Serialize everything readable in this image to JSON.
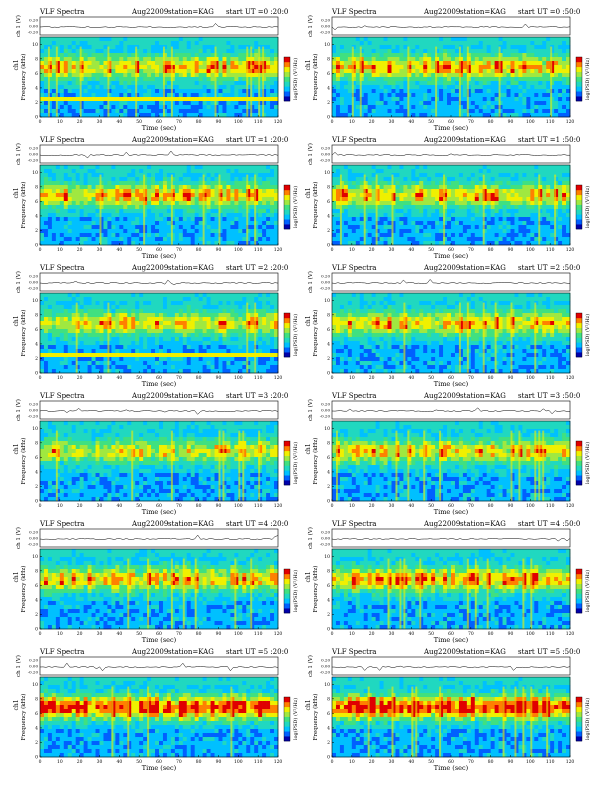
{
  "panels": [
    {
      "title_left": "VLF Spectra",
      "title_date": "Aug22009",
      "title_station": "station=KAG",
      "title_start": "start UT =0 :20:0",
      "x_ticks": [
        "0",
        "10",
        "20",
        "30",
        "40",
        "50",
        "60",
        "70",
        "80",
        "90",
        "100",
        "110",
        "120"
      ],
      "seed": 11,
      "intensity": 0.55,
      "hband": true
    },
    {
      "title_left": "VLF Spectra",
      "title_date": "Aug22009",
      "title_station": "station=KAG",
      "title_start": "start UT =0 :50:0",
      "x_ticks": [
        "0",
        "10",
        "20",
        "30",
        "40",
        "50",
        "60",
        "70",
        "80",
        "90",
        "100",
        "110",
        "120"
      ],
      "seed": 23,
      "intensity": 0.6,
      "hband": false
    },
    {
      "title_left": "VLF Spectra",
      "title_date": "Aug22009",
      "title_station": "station=KAG",
      "title_start": "start UT =1 :20:0",
      "x_ticks": [
        "0",
        "10",
        "20",
        "30",
        "40",
        "50",
        "60",
        "70",
        "80",
        "90",
        "100",
        "110",
        "120"
      ],
      "seed": 37,
      "intensity": 0.55,
      "hband": false
    },
    {
      "title_left": "VLF Spectra",
      "title_date": "Aug22009",
      "title_station": "station=KAG",
      "title_start": "start UT =1 :50:0",
      "x_ticks": [
        "0",
        "10",
        "20",
        "30",
        "40",
        "50",
        "60",
        "70",
        "80",
        "90",
        "100",
        "110",
        "120"
      ],
      "seed": 41,
      "intensity": 0.55,
      "hband": false
    },
    {
      "title_left": "VLF Spectra",
      "title_date": "Aug22009",
      "title_station": "station=KAG",
      "title_start": "start UT =2 :20:0",
      "x_ticks": [
        "0",
        "10",
        "20",
        "30",
        "40",
        "50",
        "60",
        "70",
        "80",
        "90",
        "100",
        "110",
        "120"
      ],
      "seed": 53,
      "intensity": 0.5,
      "hband": true
    },
    {
      "title_left": "VLF Spectra",
      "title_date": "Aug22009",
      "title_station": "station=KAG",
      "title_start": "start UT =2 :50:0",
      "x_ticks": [
        "0",
        "10",
        "20",
        "30",
        "40",
        "50",
        "60",
        "70",
        "80",
        "90",
        "100",
        "110",
        "120"
      ],
      "seed": 67,
      "intensity": 0.55,
      "hband": false
    },
    {
      "title_left": "VLF Spectra",
      "title_date": "Aug22009",
      "title_station": "station=KAG",
      "title_start": "start UT =3 :20:0",
      "x_ticks": [
        "0",
        "10",
        "20",
        "30",
        "40",
        "50",
        "60",
        "70",
        "80",
        "90",
        "100",
        "110",
        "120"
      ],
      "seed": 71,
      "intensity": 0.45,
      "hband": false
    },
    {
      "title_left": "VLF Spectra",
      "title_date": "Aug22009",
      "title_station": "station=KAG",
      "title_start": "start UT =3 :50:0",
      "x_ticks": [
        "0",
        "10",
        "20",
        "30",
        "40",
        "50",
        "60",
        "70",
        "80",
        "90",
        "100",
        "110",
        "120"
      ],
      "seed": 83,
      "intensity": 0.5,
      "hband": false
    },
    {
      "title_left": "VLF Spectra",
      "title_date": "Aug22009",
      "title_station": "station=KAG",
      "title_start": "start UT =4 :20:0",
      "x_ticks": [
        "0",
        "10",
        "20",
        "30",
        "40",
        "50",
        "60",
        "70",
        "80",
        "90",
        "100",
        "110",
        "120"
      ],
      "seed": 97,
      "intensity": 0.55,
      "hband": false
    },
    {
      "title_left": "VLF Spectra",
      "title_date": "Aug22009",
      "title_station": "station=KAG",
      "title_start": "start UT =4 :50:0",
      "x_ticks": [
        "0",
        "10",
        "20",
        "30",
        "40",
        "50",
        "60",
        "70",
        "80",
        "90",
        "100",
        "110",
        "120"
      ],
      "seed": 101,
      "intensity": 0.6,
      "hband": false
    },
    {
      "title_left": "VLF Spectra",
      "title_date": "Aug22009",
      "title_station": "station=KAG",
      "title_start": "start UT =5 :20:0",
      "x_ticks": [
        "0",
        "10",
        "20",
        "30",
        "40",
        "50",
        "60",
        "70",
        "80",
        "90",
        "100",
        "110",
        "120"
      ],
      "seed": 113,
      "intensity": 0.8,
      "hband": false
    },
    {
      "title_left": "VLF Spectra",
      "title_date": "Aug22009",
      "title_station": "station=KAG",
      "title_start": "start UT =5 :50:0",
      "x_ticks": [
        "0",
        "10",
        "20",
        "30",
        "40",
        "50",
        "60",
        "70",
        "80",
        "90",
        "100",
        "110",
        "120"
      ],
      "seed": 127,
      "intensity": 0.8,
      "hband": false
    }
  ],
  "labels": {
    "ch1_volts": "ch 1 (V)",
    "spec_ylabel_ch": "ch1",
    "spec_ylabel_freq": "Frequency (kHz)",
    "xlabel": "Time (sec)",
    "colorbar_label": "log(PSD) (V²/Hz)",
    "ts_ticks": [
      "0.20",
      "0.00",
      "-0.20"
    ],
    "y_ticks": [
      "0",
      "2",
      "4",
      "6",
      "8",
      "10"
    ]
  },
  "colors": {
    "scale": [
      "#0000aa",
      "#0060ff",
      "#00c0ff",
      "#20d8c0",
      "#40e080",
      "#a0e840",
      "#f0f000",
      "#ff8000",
      "#e00000"
    ]
  },
  "chart_data": {
    "type": "heatmap",
    "description_series": [
      {
        "name": "ch1",
        "x_unit": "sec",
        "y_unit": "kHz"
      }
    ],
    "xlim": [
      0,
      120
    ],
    "ylim": [
      0,
      11
    ],
    "xlabel": "Time (sec)",
    "ylabel": "Frequency (kHz)",
    "colorbar_label": "log(PSD) (V²/Hz)"
  }
}
